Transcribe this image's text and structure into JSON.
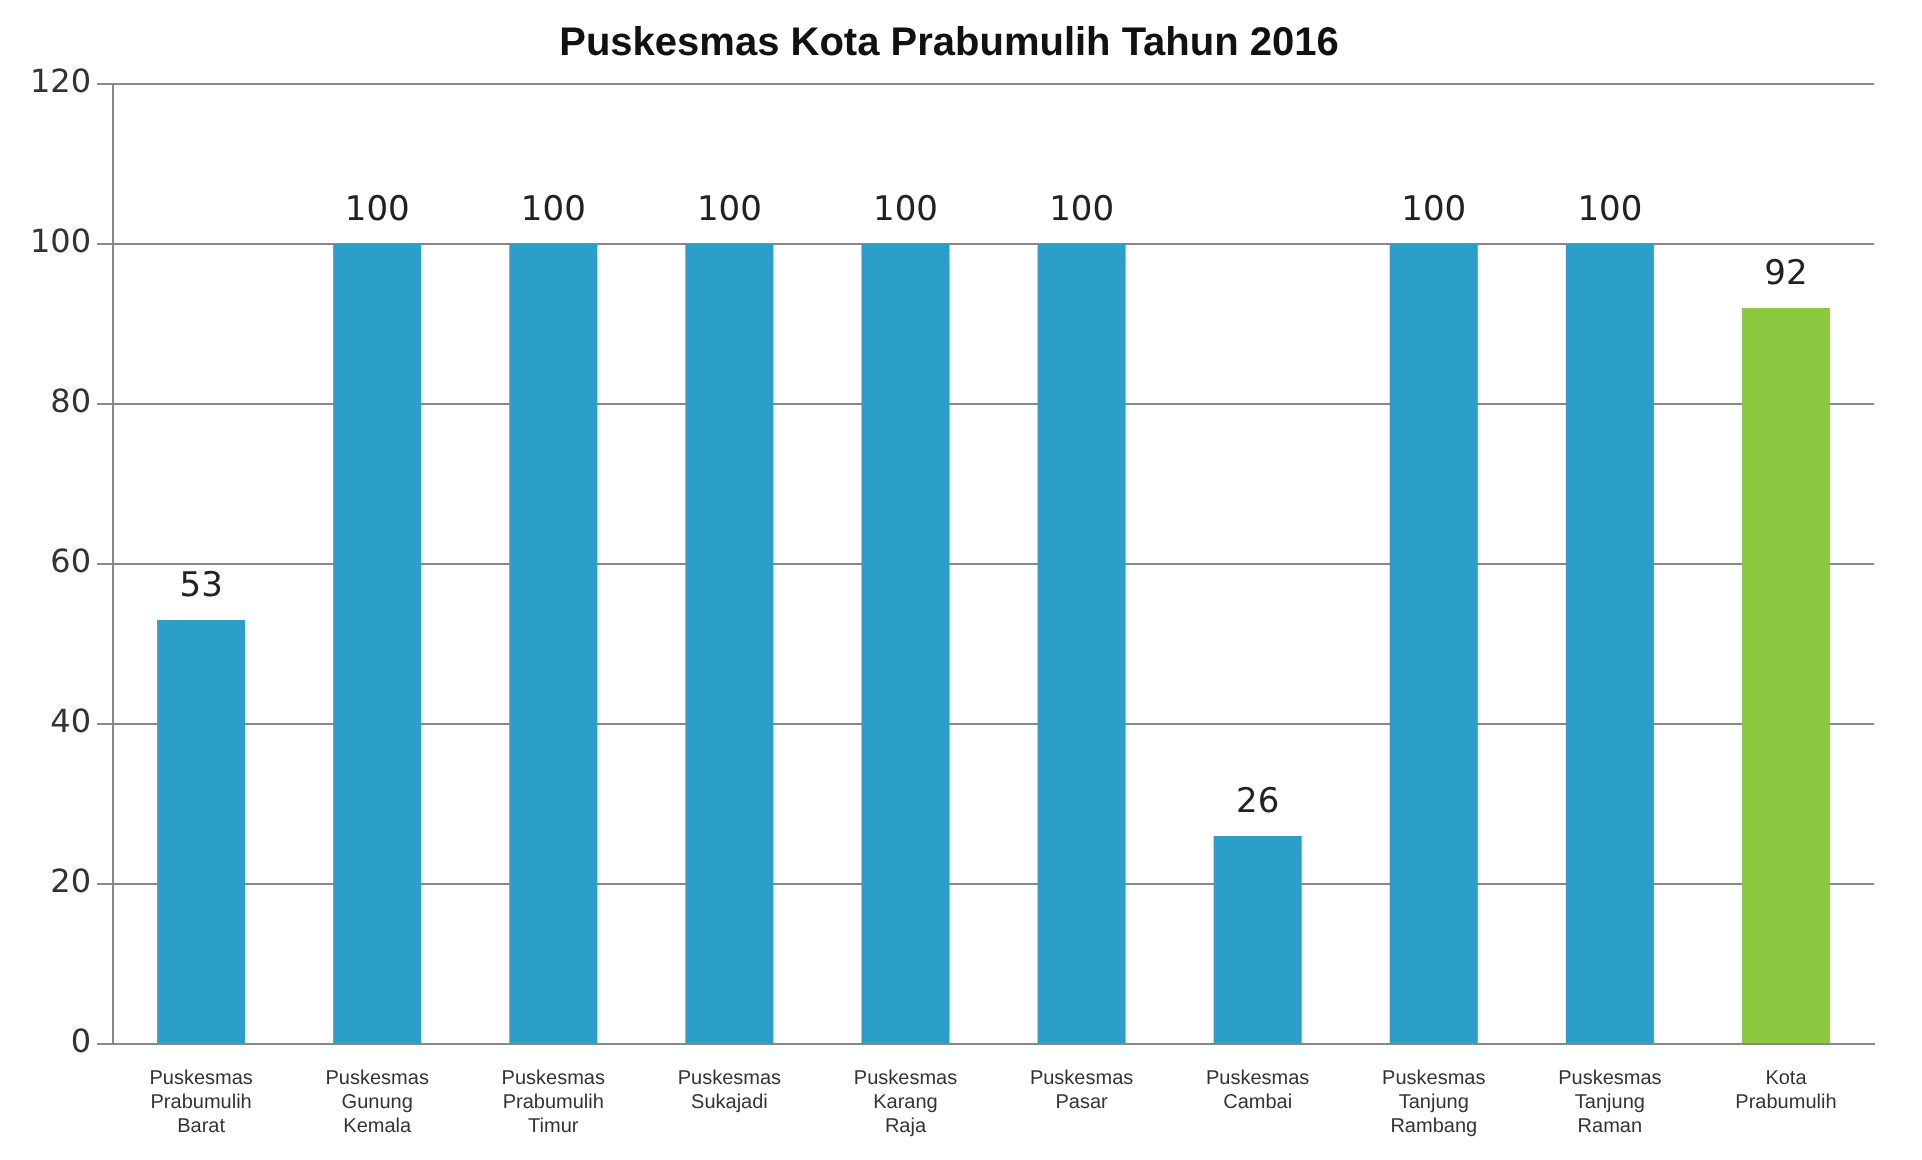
{
  "chart_data": {
    "type": "bar",
    "title": "Puskesmas Kota Prabumulih Tahun 2016",
    "categories": [
      "Puskesmas Prabumulih Barat",
      "Puskesmas Gunung Kemala",
      "Puskesmas Prabumulih Timur",
      "Puskesmas Sukajadi",
      "Puskesmas Karang Raja",
      "Puskesmas Pasar",
      "Puskesmas Cambai",
      "Puskesmas Tanjung Rambang",
      "Puskesmas Tanjung Raman",
      "Kota Prabumulih"
    ],
    "values": [
      53,
      100,
      100,
      100,
      100,
      100,
      26,
      100,
      100,
      92
    ],
    "colors": [
      "#2b9fc8",
      "#2b9fc8",
      "#2b9fc8",
      "#2b9fc8",
      "#2b9fc8",
      "#2b9fc8",
      "#2b9fc8",
      "#2b9fc8",
      "#2b9fc8",
      "#8cc840"
    ],
    "ylim": [
      0,
      120
    ],
    "yticks": [
      0,
      20,
      40,
      60,
      80,
      100,
      120
    ],
    "grid": "y",
    "data_labels": true
  }
}
